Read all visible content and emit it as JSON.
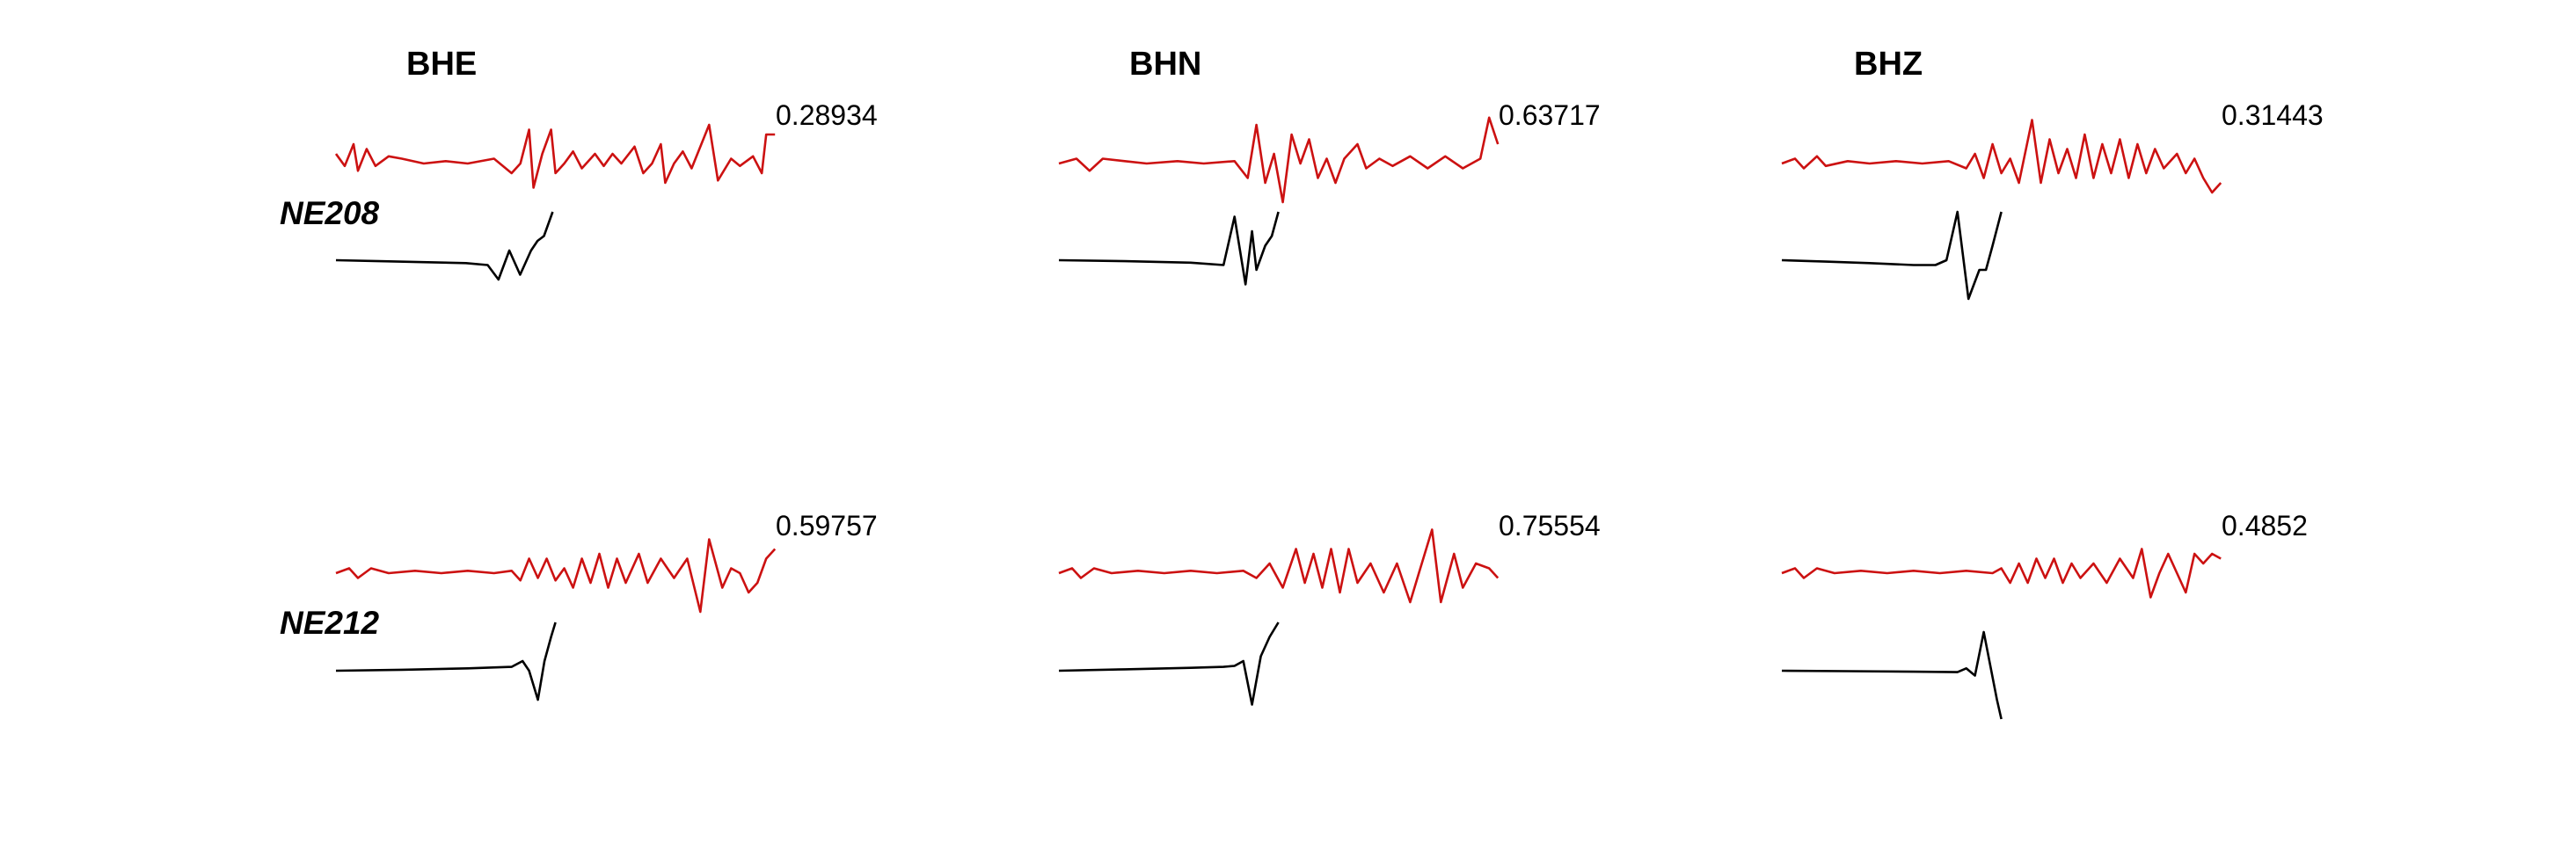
{
  "chart_data": {
    "type": "line",
    "channels": [
      "BHE",
      "BHN",
      "BHZ"
    ],
    "stations": [
      {
        "name": "NE208",
        "panels": [
          {
            "channel": "BHE",
            "correlation": "0.28934",
            "red": [
              0.0,
              0.2,
              0.02,
              -0.05,
              0.04,
              0.4,
              0.05,
              -0.15,
              0.07,
              0.3,
              0.09,
              -0.05,
              0.12,
              0.15,
              0.15,
              0.1,
              0.2,
              0.0,
              0.25,
              0.05,
              0.3,
              0.0,
              0.36,
              0.1,
              0.4,
              -0.2,
              0.42,
              0.0,
              0.44,
              0.7,
              0.45,
              -0.5,
              0.47,
              0.2,
              0.49,
              0.7,
              0.5,
              -0.2,
              0.52,
              0.0,
              0.54,
              0.25,
              0.56,
              -0.1,
              0.59,
              0.2,
              0.61,
              -0.05,
              0.63,
              0.2,
              0.65,
              0.0,
              0.68,
              0.35,
              0.7,
              -0.2,
              0.72,
              0.0,
              0.74,
              0.4,
              0.75,
              -0.4,
              0.77,
              0.0,
              0.79,
              0.25,
              0.81,
              -0.1,
              0.85,
              0.8,
              0.87,
              -0.35,
              0.9,
              0.1,
              0.92,
              -0.05,
              0.95,
              0.15,
              0.97,
              -0.2,
              0.98,
              0.6,
              1.0,
              0.6
            ],
            "black": [
              0.0,
              0.0,
              0.2,
              -0.02,
              0.4,
              -0.04,
              0.6,
              -0.06,
              0.7,
              -0.1,
              0.75,
              -0.4,
              0.8,
              0.2,
              0.85,
              -0.3,
              0.9,
              0.2,
              0.93,
              0.4,
              0.96,
              0.5,
              1.0,
              1.0
            ],
            "red_x_end": 0.78,
            "black_x_end": 0.385
          },
          {
            "channel": "BHN",
            "correlation": "0.63717",
            "red": [
              0.0,
              0.0,
              0.04,
              0.1,
              0.07,
              -0.15,
              0.1,
              0.1,
              0.15,
              0.05,
              0.2,
              0.0,
              0.27,
              0.05,
              0.33,
              0.0,
              0.4,
              0.05,
              0.43,
              -0.3,
              0.45,
              0.8,
              0.47,
              -0.4,
              0.49,
              0.2,
              0.51,
              -0.8,
              0.53,
              0.6,
              0.55,
              0.0,
              0.57,
              0.5,
              0.59,
              -0.3,
              0.61,
              0.1,
              0.63,
              -0.4,
              0.65,
              0.1,
              0.68,
              0.4,
              0.7,
              -0.1,
              0.73,
              0.1,
              0.76,
              -0.05,
              0.8,
              0.15,
              0.84,
              -0.1,
              0.88,
              0.15,
              0.92,
              -0.1,
              0.96,
              0.1,
              0.98,
              0.95,
              1.0,
              0.4
            ],
            "black": [
              0.0,
              0.0,
              0.3,
              -0.02,
              0.6,
              -0.05,
              0.75,
              -0.1,
              0.8,
              0.9,
              0.85,
              -0.5,
              0.88,
              0.6,
              0.9,
              -0.2,
              0.94,
              0.3,
              0.97,
              0.5,
              1.0,
              1.0
            ],
            "red_x_end": 0.78,
            "black_x_end": 0.39
          },
          {
            "channel": "BHZ",
            "correlation": "0.31443",
            "red": [
              0.0,
              0.0,
              0.03,
              0.1,
              0.05,
              -0.1,
              0.08,
              0.15,
              0.1,
              -0.05,
              0.15,
              0.05,
              0.2,
              0.0,
              0.26,
              0.05,
              0.32,
              0.0,
              0.38,
              0.05,
              0.42,
              -0.1,
              0.44,
              0.2,
              0.46,
              -0.3,
              0.48,
              0.4,
              0.5,
              -0.2,
              0.52,
              0.1,
              0.54,
              -0.4,
              0.57,
              0.9,
              0.59,
              -0.4,
              0.61,
              0.5,
              0.63,
              -0.2,
              0.65,
              0.3,
              0.67,
              -0.3,
              0.69,
              0.6,
              0.71,
              -0.3,
              0.73,
              0.4,
              0.75,
              -0.2,
              0.77,
              0.5,
              0.79,
              -0.3,
              0.81,
              0.4,
              0.83,
              -0.2,
              0.85,
              0.3,
              0.87,
              -0.1,
              0.9,
              0.2,
              0.92,
              -0.2,
              0.94,
              0.1,
              0.96,
              -0.3,
              0.98,
              -0.6,
              1.0,
              -0.4
            ],
            "black": [
              0.0,
              0.0,
              0.2,
              -0.03,
              0.4,
              -0.06,
              0.6,
              -0.1,
              0.7,
              -0.1,
              0.75,
              0.0,
              0.8,
              1.0,
              0.85,
              -0.8,
              0.9,
              -0.2,
              0.93,
              -0.2,
              0.96,
              0.3,
              1.0,
              1.0
            ],
            "red_x_end": 0.78,
            "black_x_end": 0.39
          }
        ]
      },
      {
        "name": "NE212",
        "panels": [
          {
            "channel": "BHE",
            "correlation": "0.59757",
            "red": [
              0.0,
              0.0,
              0.03,
              0.1,
              0.05,
              -0.1,
              0.08,
              0.1,
              0.12,
              0.0,
              0.18,
              0.05,
              0.24,
              0.0,
              0.3,
              0.05,
              0.36,
              0.0,
              0.4,
              0.05,
              0.42,
              -0.15,
              0.44,
              0.3,
              0.46,
              -0.1,
              0.48,
              0.3,
              0.5,
              -0.15,
              0.52,
              0.1,
              0.54,
              -0.3,
              0.56,
              0.3,
              0.58,
              -0.2,
              0.6,
              0.4,
              0.62,
              -0.3,
              0.64,
              0.3,
              0.66,
              -0.2,
              0.69,
              0.4,
              0.71,
              -0.2,
              0.74,
              0.3,
              0.77,
              -0.1,
              0.8,
              0.3,
              0.83,
              -0.8,
              0.85,
              0.7,
              0.88,
              -0.3,
              0.9,
              0.1,
              0.92,
              0.0,
              0.94,
              -0.4,
              0.96,
              -0.2,
              0.98,
              0.3,
              1.0,
              0.5
            ],
            "black": [
              0.0,
              0.0,
              0.3,
              0.02,
              0.6,
              0.05,
              0.8,
              0.08,
              0.85,
              0.2,
              0.88,
              0.0,
              0.92,
              -0.6,
              0.95,
              0.2,
              0.98,
              0.7,
              1.0,
              1.0
            ],
            "red_x_end": 0.78,
            "black_x_end": 0.39
          },
          {
            "channel": "BHN",
            "correlation": "0.75554",
            "red": [
              0.0,
              0.0,
              0.03,
              0.1,
              0.05,
              -0.1,
              0.08,
              0.1,
              0.12,
              0.0,
              0.18,
              0.05,
              0.24,
              0.0,
              0.3,
              0.05,
              0.36,
              0.0,
              0.42,
              0.05,
              0.45,
              -0.1,
              0.48,
              0.2,
              0.51,
              -0.3,
              0.54,
              0.5,
              0.56,
              -0.2,
              0.58,
              0.4,
              0.6,
              -0.3,
              0.62,
              0.5,
              0.64,
              -0.4,
              0.66,
              0.5,
              0.68,
              -0.2,
              0.71,
              0.2,
              0.74,
              -0.4,
              0.77,
              0.2,
              0.8,
              -0.6,
              0.82,
              0.0,
              0.85,
              0.9,
              0.87,
              -0.6,
              0.9,
              0.4,
              0.92,
              -0.3,
              0.95,
              0.2,
              0.98,
              0.1,
              1.0,
              -0.1
            ],
            "black": [
              0.0,
              0.0,
              0.3,
              0.03,
              0.6,
              0.06,
              0.75,
              0.08,
              0.8,
              0.1,
              0.84,
              0.2,
              0.88,
              -0.7,
              0.92,
              0.3,
              0.96,
              0.7,
              1.0,
              1.0
            ],
            "red_x_end": 0.78,
            "black_x_end": 0.39
          },
          {
            "channel": "BHZ",
            "correlation": "0.4852",
            "red": [
              0.0,
              0.0,
              0.03,
              0.1,
              0.05,
              -0.1,
              0.08,
              0.1,
              0.12,
              0.0,
              0.18,
              0.05,
              0.24,
              0.0,
              0.3,
              0.05,
              0.36,
              0.0,
              0.42,
              0.05,
              0.48,
              0.0,
              0.5,
              0.1,
              0.52,
              -0.2,
              0.54,
              0.2,
              0.56,
              -0.2,
              0.58,
              0.3,
              0.6,
              -0.1,
              0.62,
              0.3,
              0.64,
              -0.2,
              0.66,
              0.2,
              0.68,
              -0.1,
              0.71,
              0.2,
              0.74,
              -0.2,
              0.77,
              0.3,
              0.8,
              -0.1,
              0.82,
              0.5,
              0.84,
              -0.5,
              0.86,
              0.0,
              0.88,
              0.4,
              0.9,
              0.0,
              0.92,
              -0.4,
              0.94,
              0.4,
              0.96,
              0.2,
              0.98,
              0.4,
              1.0,
              0.3
            ],
            "black": [
              0.0,
              0.0,
              0.3,
              -0.01,
              0.6,
              -0.02,
              0.8,
              -0.03,
              0.84,
              0.05,
              0.88,
              -0.1,
              0.92,
              0.8,
              0.95,
              0.1,
              0.98,
              -0.6,
              1.0,
              -1.0
            ],
            "red_x_end": 0.78,
            "black_x_end": 0.39
          }
        ]
      }
    ],
    "colors": {
      "observed": "#cc1111",
      "synthetic": "#000000"
    }
  }
}
